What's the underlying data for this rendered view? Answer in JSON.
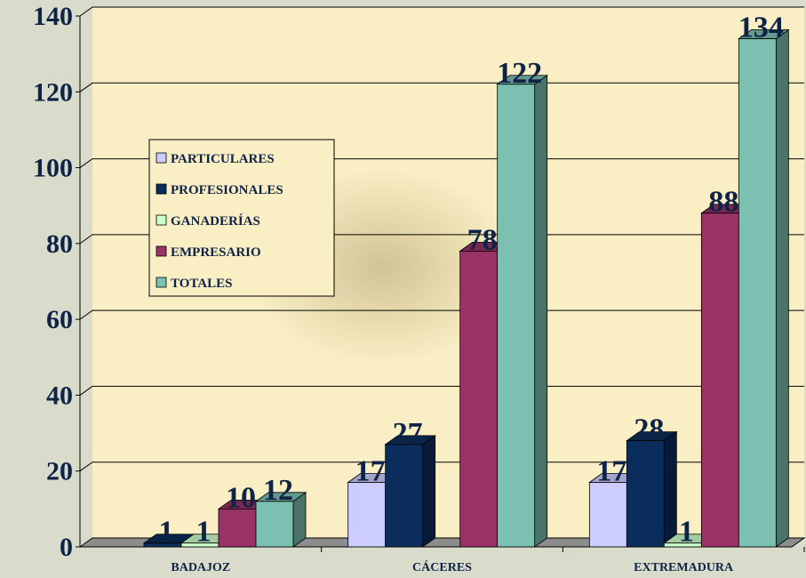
{
  "chart_data": {
    "type": "bar3d",
    "categories": [
      "BADAJOZ",
      "CÁCERES",
      "EXTREMADURA"
    ],
    "series": [
      {
        "name": "PARTICULARES",
        "color": "#ccccff",
        "values": [
          null,
          17,
          17
        ]
      },
      {
        "name": "PROFESIONALES",
        "color": "#0b2d5c",
        "values": [
          1,
          27,
          28
        ]
      },
      {
        "name": "GANADERÍAS",
        "color": "#ccffcc",
        "values": [
          1,
          null,
          1
        ]
      },
      {
        "name": "EMPRESARIO",
        "color": "#993366",
        "values": [
          10,
          78,
          88
        ]
      },
      {
        "name": "TOTALES",
        "color": "#7cc0b2",
        "values": [
          12,
          122,
          134
        ]
      }
    ],
    "ylim": [
      0,
      140
    ],
    "yticks": [
      0,
      20,
      40,
      60,
      80,
      100,
      120,
      140
    ],
    "grid": true
  }
}
